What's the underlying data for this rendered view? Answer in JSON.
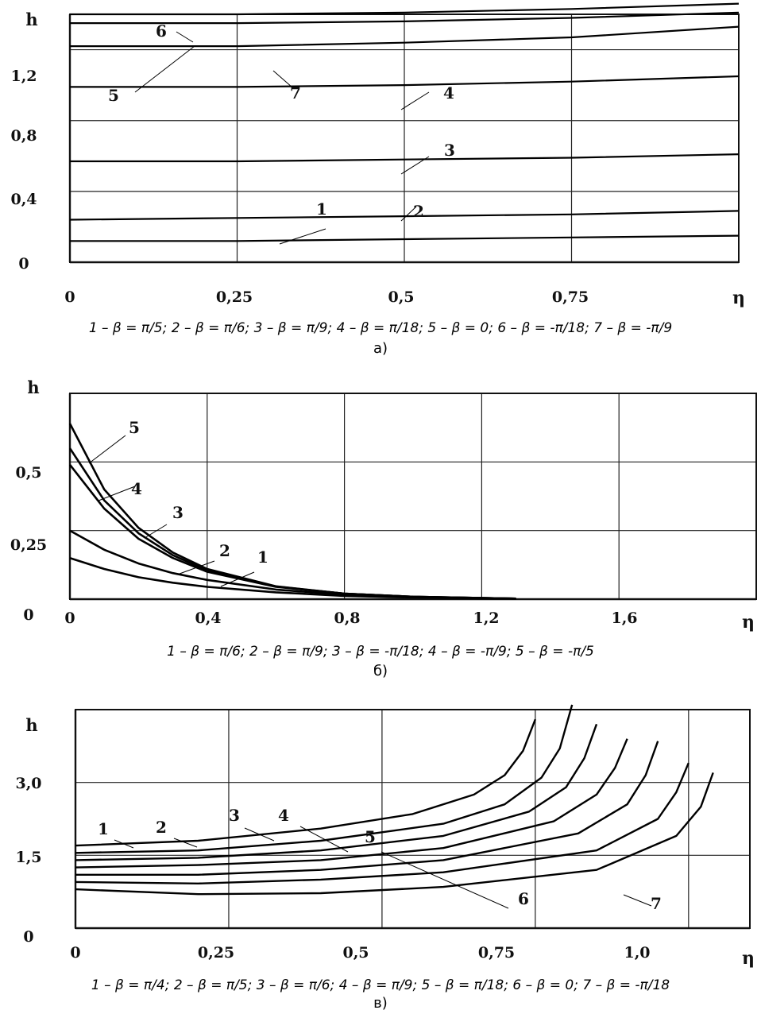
{
  "chart_data": [
    {
      "type": "line",
      "panel_label": "а)",
      "ylabel": "h",
      "xlabel": "η",
      "xlim": [
        0,
        1.0
      ],
      "ylim": [
        0,
        1.4
      ],
      "x_ticks": [
        "0",
        "0,25",
        "0,5",
        "0,75"
      ],
      "y_ticks": [
        "0",
        "0,4",
        "0,8",
        "1,2"
      ],
      "grid": true,
      "caption": "1 – β = π/5; 2 – β = π/6; 3 – β = π/9; 4 – β = π/18; 5 – β = 0; 6 – β = -π/18; 7 – β = -π/9",
      "series": [
        {
          "name": "1",
          "x": [
            0,
            0.25,
            0.5,
            0.75,
            1.0
          ],
          "y": [
            0.12,
            0.12,
            0.13,
            0.14,
            0.15
          ]
        },
        {
          "name": "2",
          "x": [
            0,
            0.25,
            0.5,
            0.75,
            1.0
          ],
          "y": [
            0.24,
            0.25,
            0.26,
            0.27,
            0.29
          ]
        },
        {
          "name": "3",
          "x": [
            0,
            0.25,
            0.5,
            0.75,
            1.0
          ],
          "y": [
            0.57,
            0.57,
            0.58,
            0.59,
            0.61
          ]
        },
        {
          "name": "4",
          "x": [
            0,
            0.25,
            0.5,
            0.75,
            1.0
          ],
          "y": [
            0.99,
            0.99,
            1.0,
            1.02,
            1.05
          ]
        },
        {
          "name": "5",
          "x": [
            0,
            0.25,
            0.5,
            0.75,
            1.0
          ],
          "y": [
            1.35,
            1.35,
            1.36,
            1.38,
            1.41
          ]
        },
        {
          "name": "6",
          "x": [
            0,
            0.25,
            0.5,
            0.75,
            1.0
          ],
          "y": [
            1.4,
            1.4,
            1.41,
            1.43,
            1.46
          ]
        },
        {
          "name": "7",
          "x": [
            0,
            0.25,
            0.5,
            0.75,
            1.0
          ],
          "y": [
            1.22,
            1.22,
            1.24,
            1.27,
            1.33
          ]
        }
      ],
      "annotations": [
        "1",
        "2",
        "3",
        "4",
        "5",
        "6",
        "7"
      ]
    },
    {
      "type": "line",
      "panel_label": "б)",
      "ylabel": "h",
      "xlabel": "η",
      "xlim": [
        0,
        2.0
      ],
      "ylim": [
        0,
        0.75
      ],
      "x_ticks": [
        "0",
        "0,4",
        "0,8",
        "1,2",
        "1,6"
      ],
      "y_ticks": [
        "0",
        "0,25",
        "0,5"
      ],
      "grid": true,
      "caption": "1 – β = π/6; 2 – β = π/9; 3 – β = -π/18; 4 – β = -π/9; 5 – β = -π/5",
      "series": [
        {
          "name": "1",
          "x": [
            0,
            0.1,
            0.2,
            0.3,
            0.4,
            0.6,
            0.8,
            1.0,
            1.3
          ],
          "y": [
            0.15,
            0.11,
            0.08,
            0.06,
            0.045,
            0.025,
            0.012,
            0.006,
            0.002
          ]
        },
        {
          "name": "2",
          "x": [
            0,
            0.1,
            0.2,
            0.3,
            0.4,
            0.6,
            0.8,
            1.0,
            1.3
          ],
          "y": [
            0.25,
            0.18,
            0.13,
            0.095,
            0.07,
            0.035,
            0.016,
            0.008,
            0.002
          ]
        },
        {
          "name": "3",
          "x": [
            0,
            0.1,
            0.2,
            0.3,
            0.4,
            0.6,
            0.8,
            1.0,
            1.3
          ],
          "y": [
            0.49,
            0.33,
            0.22,
            0.15,
            0.1,
            0.045,
            0.02,
            0.009,
            0.002
          ]
        },
        {
          "name": "4",
          "x": [
            0,
            0.1,
            0.2,
            0.3,
            0.4,
            0.6,
            0.8,
            1.0,
            1.3
          ],
          "y": [
            0.55,
            0.36,
            0.24,
            0.16,
            0.105,
            0.046,
            0.02,
            0.009,
            0.002
          ]
        },
        {
          "name": "5",
          "x": [
            0,
            0.1,
            0.2,
            0.3,
            0.4,
            0.6,
            0.8,
            1.0,
            1.3
          ],
          "y": [
            0.64,
            0.4,
            0.26,
            0.17,
            0.11,
            0.047,
            0.02,
            0.009,
            0.002
          ]
        }
      ],
      "annotations": [
        "1",
        "2",
        "3",
        "4",
        "5"
      ]
    },
    {
      "type": "line",
      "panel_label": "в)",
      "ylabel": "h",
      "xlabel": "η",
      "xlim": [
        0,
        1.1
      ],
      "ylim": [
        0,
        4.5
      ],
      "x_ticks": [
        "0",
        "0,25",
        "0,5",
        "0,75",
        "1,0"
      ],
      "y_ticks": [
        "0",
        "1,5",
        "3,0"
      ],
      "grid": true,
      "caption": "1 – β = π/4; 2 – β = π/5; 3 – β = π/6; 4 – β = π/9; 5 – β = π/18; 6 – β = 0; 7 – β = -π/18",
      "series": [
        {
          "name": "1",
          "x": [
            0,
            0.2,
            0.4,
            0.55,
            0.65,
            0.7,
            0.73,
            0.75
          ],
          "y": [
            1.7,
            1.8,
            2.05,
            2.35,
            2.75,
            3.15,
            3.65,
            4.3
          ]
        },
        {
          "name": "2",
          "x": [
            0,
            0.2,
            0.4,
            0.6,
            0.7,
            0.76,
            0.79,
            0.81
          ],
          "y": [
            1.55,
            1.6,
            1.8,
            2.15,
            2.55,
            3.1,
            3.7,
            4.6
          ]
        },
        {
          "name": "3",
          "x": [
            0,
            0.2,
            0.4,
            0.6,
            0.74,
            0.8,
            0.83,
            0.85
          ],
          "y": [
            1.4,
            1.45,
            1.6,
            1.9,
            2.4,
            2.9,
            3.5,
            4.2
          ]
        },
        {
          "name": "4",
          "x": [
            0,
            0.2,
            0.4,
            0.6,
            0.78,
            0.85,
            0.88,
            0.9
          ],
          "y": [
            1.25,
            1.3,
            1.4,
            1.65,
            2.2,
            2.75,
            3.3,
            3.9
          ]
        },
        {
          "name": "5",
          "x": [
            0,
            0.2,
            0.4,
            0.6,
            0.82,
            0.9,
            0.93,
            0.95
          ],
          "y": [
            1.1,
            1.1,
            1.2,
            1.4,
            1.95,
            2.55,
            3.15,
            3.85
          ]
        },
        {
          "name": "6",
          "x": [
            0,
            0.2,
            0.4,
            0.6,
            0.85,
            0.95,
            0.98,
            1.0
          ],
          "y": [
            0.95,
            0.92,
            1.0,
            1.15,
            1.6,
            2.25,
            2.8,
            3.4
          ]
        },
        {
          "name": "7",
          "x": [
            0,
            0.2,
            0.4,
            0.6,
            0.85,
            0.98,
            1.02,
            1.04
          ],
          "y": [
            0.8,
            0.7,
            0.72,
            0.85,
            1.2,
            1.9,
            2.5,
            3.2
          ]
        }
      ],
      "annotations": [
        "1",
        "2",
        "3",
        "4",
        "5",
        "6",
        "7"
      ]
    }
  ]
}
